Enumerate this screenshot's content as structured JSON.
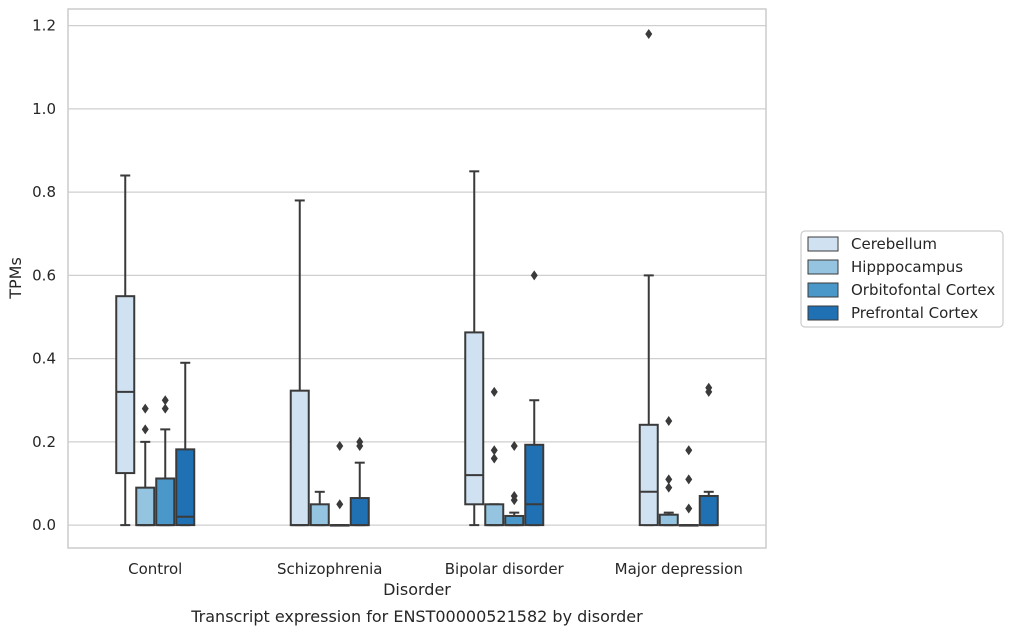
{
  "chart_data": {
    "type": "box",
    "caption": "Transcript expression for ENST00000521582 by disorder",
    "xlabel": "Disorder",
    "ylabel": "TPMs",
    "ylim": [
      -0.055,
      1.24
    ],
    "yticks": [
      "0.0",
      "0.2",
      "0.4",
      "0.6",
      "0.8",
      "1.0",
      "1.2"
    ],
    "ytick_values": [
      0.0,
      0.2,
      0.4,
      0.6,
      0.8,
      1.0,
      1.2
    ],
    "grid": true,
    "legend_position": "right",
    "categories": [
      "Control",
      "Schizophrenia",
      "Bipolar disorder",
      "Major depression"
    ],
    "series": [
      {
        "name": "Cerebellum",
        "color": "#d0e1f2",
        "boxes": [
          {
            "q1": 0.125,
            "median": 0.32,
            "q3": 0.55,
            "whislo": 0.0,
            "whishi": 0.84,
            "outliers": []
          },
          {
            "q1": 0.0,
            "median": 0.0,
            "q3": 0.323,
            "whislo": 0.0,
            "whishi": 0.78,
            "outliers": []
          },
          {
            "q1": 0.05,
            "median": 0.12,
            "q3": 0.463,
            "whislo": 0.0,
            "whishi": 0.85,
            "outliers": []
          },
          {
            "q1": 0.0,
            "median": 0.08,
            "q3": 0.241,
            "whislo": 0.0,
            "whishi": 0.6,
            "outliers": [
              1.18
            ]
          }
        ]
      },
      {
        "name": "Hipppocampus",
        "color": "#94c4df",
        "boxes": [
          {
            "q1": 0.0,
            "median": 0.0,
            "q3": 0.09,
            "whislo": 0.0,
            "whishi": 0.2,
            "outliers": [
              0.23,
              0.28
            ]
          },
          {
            "q1": 0.0,
            "median": 0.0,
            "q3": 0.05,
            "whislo": 0.0,
            "whishi": 0.08,
            "outliers": []
          },
          {
            "q1": 0.0,
            "median": 0.0,
            "q3": 0.05,
            "whislo": 0.0,
            "whishi": 0.05,
            "outliers": [
              0.16,
              0.18,
              0.32
            ]
          },
          {
            "q1": 0.0,
            "median": 0.0,
            "q3": 0.025,
            "whislo": 0.0,
            "whishi": 0.03,
            "outliers": [
              0.09,
              0.11,
              0.25
            ]
          }
        ]
      },
      {
        "name": "Orbitofontal Cortex",
        "color": "#4a98c9",
        "boxes": [
          {
            "q1": 0.0,
            "median": 0.0,
            "q3": 0.112,
            "whislo": 0.0,
            "whishi": 0.23,
            "outliers": [
              0.28,
              0.3
            ]
          },
          {
            "q1": 0.0,
            "median": 0.0,
            "q3": 0.0,
            "whislo": 0.0,
            "whishi": 0.0,
            "outliers": [
              0.05,
              0.19
            ]
          },
          {
            "q1": 0.0,
            "median": 0.0,
            "q3": 0.022,
            "whislo": 0.0,
            "whishi": 0.03,
            "outliers": [
              0.06,
              0.07,
              0.19
            ]
          },
          {
            "q1": 0.0,
            "median": 0.0,
            "q3": 0.0,
            "whislo": 0.0,
            "whishi": 0.0,
            "outliers": [
              0.04,
              0.11,
              0.18
            ]
          }
        ]
      },
      {
        "name": "Prefrontal Cortex",
        "color": "#2070b4",
        "boxes": [
          {
            "q1": 0.0,
            "median": 0.02,
            "q3": 0.182,
            "whislo": 0.0,
            "whishi": 0.39,
            "outliers": []
          },
          {
            "q1": 0.0,
            "median": 0.0,
            "q3": 0.065,
            "whislo": 0.0,
            "whishi": 0.15,
            "outliers": [
              0.19,
              0.2
            ]
          },
          {
            "q1": 0.0,
            "median": 0.05,
            "q3": 0.193,
            "whislo": 0.0,
            "whishi": 0.3,
            "outliers": [
              0.6
            ]
          },
          {
            "q1": 0.0,
            "median": 0.0,
            "q3": 0.07,
            "whislo": 0.0,
            "whishi": 0.08,
            "outliers": [
              0.32,
              0.33
            ]
          }
        ]
      }
    ]
  }
}
